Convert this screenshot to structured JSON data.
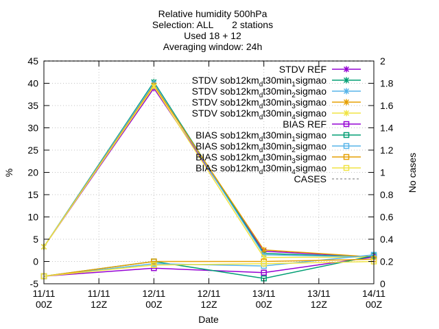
{
  "chart_data": {
    "type": "line",
    "title": [
      "Relative humidity 500hPa",
      "Selection: ALL       2 stations",
      "Used 18 + 12",
      "Averaging window: 24h"
    ],
    "xlabel": "Date",
    "ylabel": "%",
    "y2label": "No cases",
    "categories": [
      "11/11 00Z",
      "11/11 12Z",
      "12/11 00Z",
      "12/11 12Z",
      "13/11 00Z",
      "13/11 12Z",
      "14/11 00Z"
    ],
    "x_ticks": [
      {
        "day": "11/11",
        "hour": "00Z"
      },
      {
        "day": "11/11",
        "hour": "12Z"
      },
      {
        "day": "12/11",
        "hour": "00Z"
      },
      {
        "day": "12/11",
        "hour": "12Z"
      },
      {
        "day": "13/11",
        "hour": "00Z"
      },
      {
        "day": "13/11",
        "hour": "12Z"
      },
      {
        "day": "14/11",
        "hour": "00Z"
      }
    ],
    "ylim": [
      -5,
      45
    ],
    "yticks": [
      "-5",
      "0",
      "5",
      "10",
      "15",
      "20",
      "25",
      "30",
      "35",
      "40",
      "45"
    ],
    "y2lim": [
      0,
      2
    ],
    "y2ticks": [
      "0",
      "0.2",
      "0.4",
      "0.6",
      "0.8",
      "1",
      "1.2",
      "1.4",
      "1.6",
      "1.8",
      "2"
    ],
    "legend_position": "top-right",
    "series": [
      {
        "name": "STDV REF",
        "sub": "",
        "color": "#9400d3",
        "marker": "x",
        "values": [
          3.3,
          null,
          38.9,
          null,
          2.3,
          null,
          1.0
        ]
      },
      {
        "name": "STDV sob12km",
        "sub": "d",
        "name_tail": "t30min",
        "sub2": "1",
        "name_end": "sigmao",
        "color": "#009e73",
        "marker": "x",
        "values": [
          3.3,
          null,
          40.3,
          null,
          1.8,
          null,
          1.0
        ]
      },
      {
        "name": "STDV sob12km",
        "sub": "d",
        "name_tail": "t30min",
        "sub2": "2",
        "name_end": "sigmao",
        "color": "#56b4e9",
        "marker": "x",
        "values": [
          3.3,
          null,
          40.0,
          null,
          1.5,
          null,
          1.0
        ]
      },
      {
        "name": "STDV sob12km",
        "sub": "d",
        "name_tail": "t30min",
        "sub2": "3",
        "name_end": "sigmao",
        "color": "#e69f00",
        "marker": "x",
        "values": [
          3.3,
          null,
          39.6,
          null,
          2.6,
          null,
          1.0
        ]
      },
      {
        "name": "STDV sob12km",
        "sub": "d",
        "name_tail": "t30min",
        "sub2": "4",
        "name_end": "sigmao",
        "color": "#f0e442",
        "marker": "x",
        "values": [
          3.3,
          null,
          39.3,
          null,
          0.9,
          null,
          1.0
        ]
      },
      {
        "name": "BIAS REF",
        "sub": "",
        "color": "#9400d3",
        "marker": "square",
        "values": [
          -3.3,
          null,
          -1.5,
          null,
          -2.5,
          null,
          1.0
        ]
      },
      {
        "name": "BIAS sob12km",
        "sub": "d",
        "name_tail": "t30min",
        "sub2": "1",
        "name_end": "sigmao",
        "color": "#009e73",
        "marker": "square",
        "values": [
          -3.3,
          null,
          0.0,
          null,
          -3.8,
          null,
          1.3
        ]
      },
      {
        "name": "BIAS sob12km",
        "sub": "d",
        "name_tail": "t30min",
        "sub2": "2",
        "name_end": "sigmao",
        "color": "#56b4e9",
        "marker": "square",
        "values": [
          -3.3,
          null,
          -0.5,
          null,
          -1.0,
          null,
          1.5
        ]
      },
      {
        "name": "BIAS sob12km",
        "sub": "d",
        "name_tail": "t30min",
        "sub2": "3",
        "name_end": "sigmao",
        "color": "#e69f00",
        "marker": "square",
        "values": [
          -3.3,
          null,
          0.0,
          null,
          0.0,
          null,
          0.5
        ]
      },
      {
        "name": "BIAS sob12km",
        "sub": "d",
        "name_tail": "t30min",
        "sub2": "4",
        "name_end": "sigmao",
        "color": "#f0e442",
        "marker": "square",
        "values": [
          -3.3,
          null,
          -0.8,
          null,
          -0.5,
          null,
          0.0
        ]
      },
      {
        "name": "CASES",
        "sub": "",
        "color": "#a0a0a0",
        "marker": "none",
        "dashed": true,
        "axis": "y2",
        "values": [
          2,
          null,
          2,
          null,
          2,
          null,
          2
        ]
      }
    ]
  }
}
